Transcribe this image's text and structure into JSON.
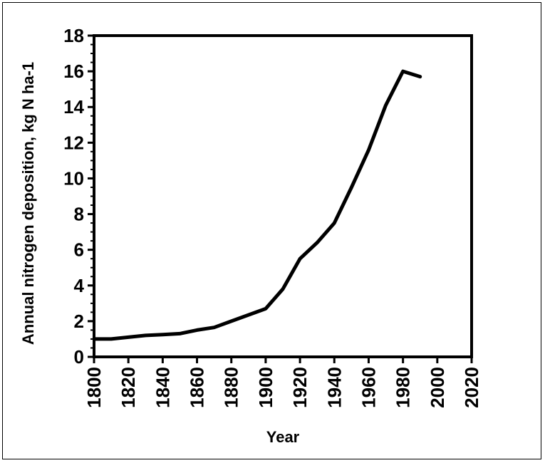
{
  "chart_data": {
    "type": "line",
    "title": "",
    "xlabel": "Year",
    "ylabel": "Annual nitrogen deposition, kg N ha-1",
    "xlim": [
      1800,
      2020
    ],
    "ylim": [
      0,
      18
    ],
    "x_ticks": [
      "1800",
      "1820",
      "1840",
      "1860",
      "1880",
      "1900",
      "1920",
      "1940",
      "1960",
      "1980",
      "2000",
      "2020"
    ],
    "y_ticks": [
      "0",
      "2",
      "4",
      "6",
      "8",
      "10",
      "12",
      "14",
      "16",
      "18"
    ],
    "grid": false,
    "legend": "none",
    "line_color": "#000000",
    "series": [
      {
        "x": [
          1800,
          1810,
          1820,
          1830,
          1840,
          1850,
          1860,
          1870,
          1880,
          1890,
          1900,
          1910,
          1920,
          1930,
          1940,
          1950,
          1960,
          1970,
          1980,
          1990
        ],
        "values": [
          1.0,
          1.0,
          1.1,
          1.2,
          1.25,
          1.3,
          1.5,
          1.65,
          2.0,
          2.35,
          2.7,
          3.8,
          5.5,
          6.4,
          7.5,
          9.5,
          11.6,
          14.1,
          16.0,
          15.7
        ]
      }
    ]
  }
}
